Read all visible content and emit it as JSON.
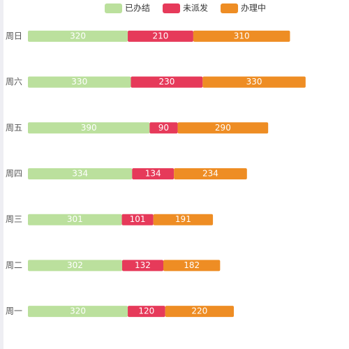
{
  "chart_data": {
    "type": "stacked-hbar",
    "categories": [
      "周一",
      "周二",
      "周三",
      "周四",
      "周五",
      "周六",
      "周日"
    ],
    "series": [
      {
        "name": "已办结",
        "color": "#bbe09d",
        "values": [
          320,
          302,
          301,
          334,
          390,
          330,
          320
        ]
      },
      {
        "name": "未派发",
        "color": "#e63a5a",
        "values": [
          120,
          132,
          101,
          134,
          90,
          230,
          210
        ]
      },
      {
        "name": "办理中",
        "color": "#ee8d24",
        "values": [
          220,
          182,
          191,
          234,
          290,
          330,
          310
        ]
      }
    ],
    "xlim": [
      0,
      1000
    ],
    "legend": "top"
  }
}
